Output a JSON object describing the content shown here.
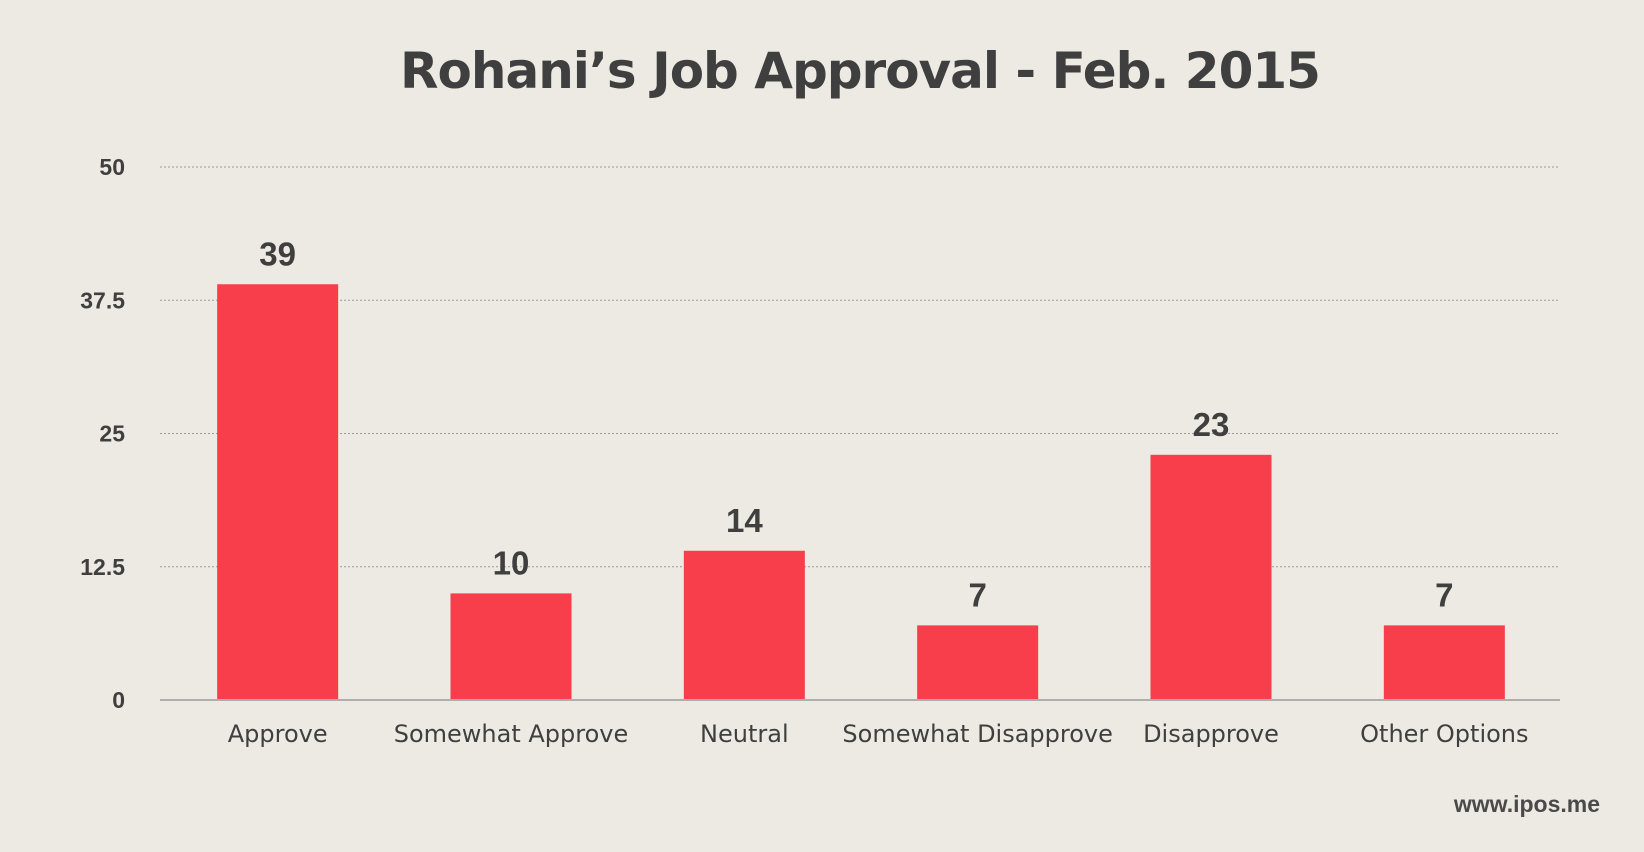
{
  "chart_data": {
    "type": "bar",
    "title": "Rohani’s Job Approval - Feb. 2015",
    "categories": [
      "Approve",
      "Somewhat Approve",
      "Neutral",
      "Somewhat Disapprove",
      "Disapprove",
      "Other Options"
    ],
    "values": [
      39,
      10,
      14,
      7,
      23,
      7
    ],
    "ylim": [
      0,
      50
    ],
    "yticks": [
      "0",
      "12.5",
      "25",
      "37.5",
      "50"
    ],
    "xlabel": "",
    "ylabel": "",
    "grid": true,
    "bar_color": "#f73e4a"
  },
  "footer": {
    "url": "www.ipos.me"
  }
}
